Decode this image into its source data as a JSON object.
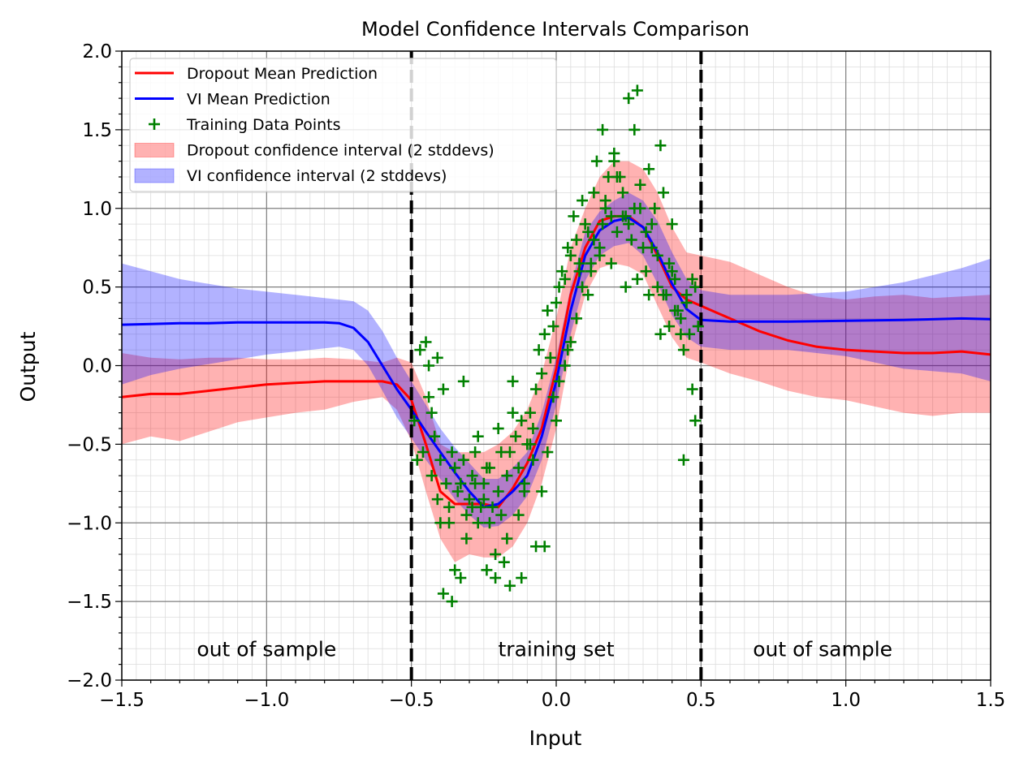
{
  "chart_data": {
    "type": "line",
    "title": "Model Confidence Intervals Comparison",
    "xlabel": "Input",
    "ylabel": "Output",
    "xlim": [
      -1.5,
      1.5
    ],
    "ylim": [
      -2.0,
      2.0
    ],
    "x_ticks": [
      -1.5,
      -1.0,
      -0.5,
      0.0,
      0.5,
      1.0,
      1.5
    ],
    "x_tick_labels": [
      "−1.5",
      "−1.0",
      "−0.5",
      "0.0",
      "0.5",
      "1.0",
      "1.5"
    ],
    "y_ticks": [
      2.0,
      1.5,
      1.0,
      0.5,
      0.0,
      -0.5,
      -1.0,
      -1.5,
      -2.0
    ],
    "y_tick_labels": [
      "2.0",
      "1.5",
      "1.0",
      "0.5",
      "0.0",
      "−0.5",
      "−1.0",
      "−1.5",
      "−2.0"
    ],
    "grid": true,
    "minor_grid": true,
    "legend_position": "top-left",
    "legend": [
      {
        "label": "Dropout Mean Prediction",
        "kind": "line",
        "color": "#ff0000"
      },
      {
        "label": "VI Mean Prediction",
        "kind": "line",
        "color": "#0000ff"
      },
      {
        "label": "Training Data Points",
        "kind": "marker",
        "color": "#008000"
      },
      {
        "label": "Dropout confidence interval (2 stddevs)",
        "kind": "patch",
        "color": "#ff0000"
      },
      {
        "label": "VI confidence interval (2 stddevs)",
        "kind": "patch",
        "color": "#0000ff"
      }
    ],
    "vertical_lines": [
      -0.5,
      0.5
    ],
    "annotations": [
      {
        "text": "out of sample",
        "x": -1.0,
        "y": -1.8
      },
      {
        "text": "training set",
        "x": 0.0,
        "y": -1.8
      },
      {
        "text": "out of sample",
        "x": 0.92,
        "y": -1.8
      }
    ],
    "series": [
      {
        "name": "Dropout Mean Prediction",
        "color": "#ff0000",
        "x": [
          -1.5,
          -1.4,
          -1.3,
          -1.2,
          -1.1,
          -1.0,
          -0.9,
          -0.8,
          -0.7,
          -0.6,
          -0.55,
          -0.5,
          -0.45,
          -0.4,
          -0.35,
          -0.3,
          -0.25,
          -0.2,
          -0.15,
          -0.1,
          -0.05,
          0.0,
          0.05,
          0.1,
          0.15,
          0.2,
          0.25,
          0.3,
          0.35,
          0.4,
          0.45,
          0.5,
          0.6,
          0.7,
          0.8,
          0.9,
          1.0,
          1.1,
          1.2,
          1.3,
          1.4,
          1.5
        ],
        "y": [
          -0.2,
          -0.18,
          -0.18,
          -0.16,
          -0.14,
          -0.12,
          -0.11,
          -0.1,
          -0.1,
          -0.1,
          -0.12,
          -0.22,
          -0.5,
          -0.8,
          -0.88,
          -0.88,
          -0.88,
          -0.9,
          -0.78,
          -0.62,
          -0.4,
          -0.02,
          0.45,
          0.75,
          0.92,
          0.95,
          0.95,
          0.88,
          0.7,
          0.5,
          0.42,
          0.38,
          0.3,
          0.22,
          0.16,
          0.12,
          0.1,
          0.09,
          0.08,
          0.08,
          0.09,
          0.07
        ]
      },
      {
        "name": "VI Mean Prediction",
        "color": "#0000ff",
        "x": [
          -1.5,
          -1.4,
          -1.3,
          -1.2,
          -1.1,
          -1.0,
          -0.9,
          -0.8,
          -0.75,
          -0.7,
          -0.65,
          -0.6,
          -0.55,
          -0.5,
          -0.45,
          -0.4,
          -0.35,
          -0.3,
          -0.25,
          -0.2,
          -0.15,
          -0.1,
          -0.05,
          0.0,
          0.05,
          0.1,
          0.15,
          0.2,
          0.25,
          0.3,
          0.35,
          0.4,
          0.45,
          0.5,
          0.6,
          0.8,
          1.0,
          1.2,
          1.4,
          1.5
        ],
        "y": [
          0.26,
          0.265,
          0.27,
          0.27,
          0.275,
          0.275,
          0.275,
          0.275,
          0.27,
          0.24,
          0.15,
          0.0,
          -0.15,
          -0.28,
          -0.42,
          -0.55,
          -0.68,
          -0.8,
          -0.9,
          -0.88,
          -0.8,
          -0.7,
          -0.45,
          -0.1,
          0.35,
          0.7,
          0.86,
          0.92,
          0.94,
          0.88,
          0.72,
          0.52,
          0.36,
          0.29,
          0.28,
          0.28,
          0.285,
          0.29,
          0.3,
          0.295
        ]
      }
    ],
    "bands": [
      {
        "name": "Dropout confidence interval (2 stddevs)",
        "color": "#ff0000",
        "x": [
          -1.5,
          -1.4,
          -1.3,
          -1.2,
          -1.1,
          -1.0,
          -0.9,
          -0.8,
          -0.7,
          -0.6,
          -0.55,
          -0.5,
          -0.45,
          -0.4,
          -0.35,
          -0.3,
          -0.25,
          -0.2,
          -0.15,
          -0.1,
          -0.05,
          0.0,
          0.05,
          0.1,
          0.15,
          0.2,
          0.25,
          0.3,
          0.35,
          0.4,
          0.45,
          0.5,
          0.6,
          0.7,
          0.8,
          0.9,
          1.0,
          1.1,
          1.2,
          1.3,
          1.4,
          1.5
        ],
        "upper": [
          0.08,
          0.05,
          0.04,
          0.05,
          0.05,
          0.04,
          0.04,
          0.05,
          0.04,
          0.02,
          0.05,
          0.02,
          -0.2,
          -0.5,
          -0.55,
          -0.55,
          -0.55,
          -0.5,
          -0.42,
          -0.28,
          -0.05,
          0.3,
          0.75,
          1.0,
          1.2,
          1.3,
          1.3,
          1.25,
          1.1,
          0.88,
          0.72,
          0.7,
          0.66,
          0.58,
          0.5,
          0.44,
          0.42,
          0.44,
          0.45,
          0.43,
          0.44,
          0.45
        ],
        "lower": [
          -0.5,
          -0.45,
          -0.48,
          -0.42,
          -0.36,
          -0.33,
          -0.3,
          -0.28,
          -0.23,
          -0.2,
          -0.28,
          -0.48,
          -0.8,
          -1.1,
          -1.25,
          -1.2,
          -1.22,
          -1.22,
          -1.15,
          -1.0,
          -0.75,
          -0.4,
          0.1,
          0.45,
          0.62,
          0.65,
          0.63,
          0.58,
          0.38,
          0.18,
          0.05,
          0.02,
          -0.05,
          -0.1,
          -0.16,
          -0.2,
          -0.22,
          -0.26,
          -0.3,
          -0.32,
          -0.3,
          -0.3
        ]
      },
      {
        "name": "VI confidence interval (2 stddevs)",
        "color": "#0000ff",
        "x": [
          -1.5,
          -1.4,
          -1.3,
          -1.2,
          -1.1,
          -1.0,
          -0.9,
          -0.8,
          -0.75,
          -0.7,
          -0.65,
          -0.6,
          -0.55,
          -0.5,
          -0.45,
          -0.4,
          -0.35,
          -0.3,
          -0.25,
          -0.2,
          -0.15,
          -0.1,
          -0.05,
          0.0,
          0.05,
          0.1,
          0.15,
          0.2,
          0.25,
          0.3,
          0.35,
          0.4,
          0.45,
          0.5,
          0.6,
          0.8,
          1.0,
          1.2,
          1.4,
          1.5
        ],
        "upper": [
          0.65,
          0.6,
          0.55,
          0.52,
          0.49,
          0.47,
          0.45,
          0.43,
          0.42,
          0.41,
          0.35,
          0.22,
          0.05,
          -0.1,
          -0.25,
          -0.4,
          -0.52,
          -0.62,
          -0.72,
          -0.72,
          -0.65,
          -0.55,
          -0.3,
          0.05,
          0.5,
          0.85,
          0.98,
          1.05,
          1.1,
          1.05,
          0.92,
          0.72,
          0.55,
          0.48,
          0.45,
          0.45,
          0.47,
          0.53,
          0.62,
          0.68
        ],
        "lower": [
          -0.12,
          -0.06,
          -0.02,
          0.01,
          0.04,
          0.07,
          0.09,
          0.11,
          0.12,
          0.1,
          0.0,
          -0.16,
          -0.33,
          -0.46,
          -0.6,
          -0.72,
          -0.85,
          -0.95,
          -1.03,
          -1.02,
          -0.95,
          -0.83,
          -0.6,
          -0.25,
          0.2,
          0.54,
          0.7,
          0.76,
          0.78,
          0.7,
          0.52,
          0.32,
          0.18,
          0.12,
          0.1,
          0.1,
          0.06,
          -0.02,
          -0.05,
          -0.1
        ]
      }
    ],
    "scatter": {
      "name": "Training Data Points",
      "color": "#008000",
      "marker": "+",
      "x": [
        -0.49,
        -0.47,
        -0.46,
        -0.44,
        -0.43,
        -0.42,
        -0.41,
        -0.4,
        -0.39,
        -0.38,
        -0.37,
        -0.36,
        -0.35,
        -0.34,
        -0.33,
        -0.32,
        -0.31,
        -0.3,
        -0.29,
        -0.28,
        -0.27,
        -0.26,
        -0.25,
        -0.24,
        -0.23,
        -0.22,
        -0.21,
        -0.2,
        -0.19,
        -0.18,
        -0.17,
        -0.16,
        -0.15,
        -0.14,
        -0.13,
        -0.12,
        -0.11,
        -0.1,
        -0.09,
        -0.08,
        -0.07,
        -0.06,
        -0.05,
        -0.04,
        -0.03,
        -0.02,
        -0.01,
        0.0,
        0.01,
        0.02,
        0.03,
        0.04,
        0.05,
        0.06,
        0.07,
        0.08,
        0.09,
        0.1,
        0.11,
        0.12,
        0.13,
        0.14,
        0.15,
        0.16,
        0.17,
        0.18,
        0.19,
        0.2,
        0.21,
        0.22,
        0.23,
        0.24,
        0.25,
        0.26,
        0.27,
        0.28,
        0.29,
        0.3,
        0.31,
        0.32,
        0.33,
        0.34,
        0.35,
        0.36,
        0.37,
        0.38,
        0.39,
        0.4,
        0.41,
        0.42,
        0.43,
        0.44,
        0.45,
        0.46,
        0.47,
        0.48,
        0.49,
        -0.45,
        -0.43,
        -0.41,
        -0.39,
        -0.37,
        -0.35,
        -0.33,
        -0.31,
        -0.29,
        -0.27,
        -0.25,
        -0.23,
        -0.21,
        -0.19,
        -0.17,
        -0.15,
        -0.13,
        -0.11,
        -0.09,
        -0.07,
        -0.05,
        -0.03,
        -0.01,
        0.01,
        0.03,
        0.05,
        0.07,
        0.09,
        0.11,
        0.13,
        0.15,
        0.17,
        0.19,
        0.21,
        0.23,
        0.25,
        0.27,
        0.29,
        0.31,
        0.33,
        0.35,
        0.37,
        0.39,
        0.41,
        0.43,
        0.45,
        0.47,
        -0.48,
        -0.44,
        -0.4,
        -0.36,
        -0.32,
        -0.28,
        -0.24,
        -0.2,
        -0.16,
        -0.12,
        -0.08,
        -0.04,
        0.0,
        0.04,
        0.08,
        0.12,
        0.16,
        0.2,
        0.24,
        0.28,
        0.32,
        0.36,
        0.4,
        0.44,
        0.48
      ],
      "y": [
        -0.35,
        0.1,
        -0.55,
        0.0,
        -0.7,
        -0.45,
        0.05,
        -0.6,
        -1.45,
        -0.75,
        -0.9,
        -0.55,
        -1.3,
        -0.8,
        -1.35,
        -0.6,
        -0.95,
        -0.85,
        -0.7,
        -0.55,
        -1.0,
        -0.9,
        -0.75,
        -1.3,
        -0.65,
        -0.9,
        -1.35,
        -0.8,
        -0.95,
        -1.25,
        -0.7,
        -0.55,
        -0.1,
        -0.45,
        -0.65,
        -0.35,
        -0.8,
        -0.5,
        -0.3,
        -0.4,
        -0.15,
        0.1,
        -0.05,
        0.2,
        0.35,
        0.05,
        0.25,
        0.4,
        0.5,
        0.6,
        0.55,
        0.75,
        0.7,
        0.95,
        0.8,
        0.65,
        1.05,
        0.9,
        0.85,
        0.6,
        1.1,
        1.3,
        0.75,
        0.9,
        1.05,
        1.2,
        0.65,
        1.35,
        0.85,
        1.2,
        1.1,
        0.5,
        0.9,
        0.8,
        1.0,
        0.55,
        1.15,
        0.75,
        0.6,
        0.45,
        0.9,
        1.0,
        0.7,
        1.4,
        1.1,
        0.45,
        0.25,
        0.6,
        0.55,
        0.35,
        0.3,
        0.1,
        0.4,
        0.2,
        0.55,
        0.5,
        0.25,
        0.15,
        -0.3,
        -0.85,
        -0.15,
        -1.0,
        -0.65,
        -0.75,
        -1.1,
        -0.9,
        -0.45,
        -0.85,
        -1.0,
        -1.2,
        -0.55,
        -1.1,
        -0.3,
        -0.95,
        -0.75,
        -0.5,
        -1.15,
        -0.8,
        -0.55,
        -0.2,
        -0.1,
        0.0,
        0.15,
        0.3,
        0.5,
        0.45,
        0.8,
        0.7,
        1.0,
        0.95,
        1.2,
        0.95,
        1.7,
        1.5,
        1.0,
        0.85,
        0.75,
        0.5,
        0.45,
        0.65,
        0.35,
        0.2,
        0.45,
        -0.15,
        -0.6,
        -0.2,
        -1.0,
        -1.5,
        -0.1,
        -0.75,
        -0.65,
        -0.4,
        -1.4,
        -1.35,
        -0.6,
        -1.15,
        -0.35,
        0.1,
        0.6,
        0.65,
        1.5,
        1.3,
        0.95,
        1.75,
        1.25,
        0.2,
        0.9,
        -0.6,
        -0.35
      ]
    }
  }
}
